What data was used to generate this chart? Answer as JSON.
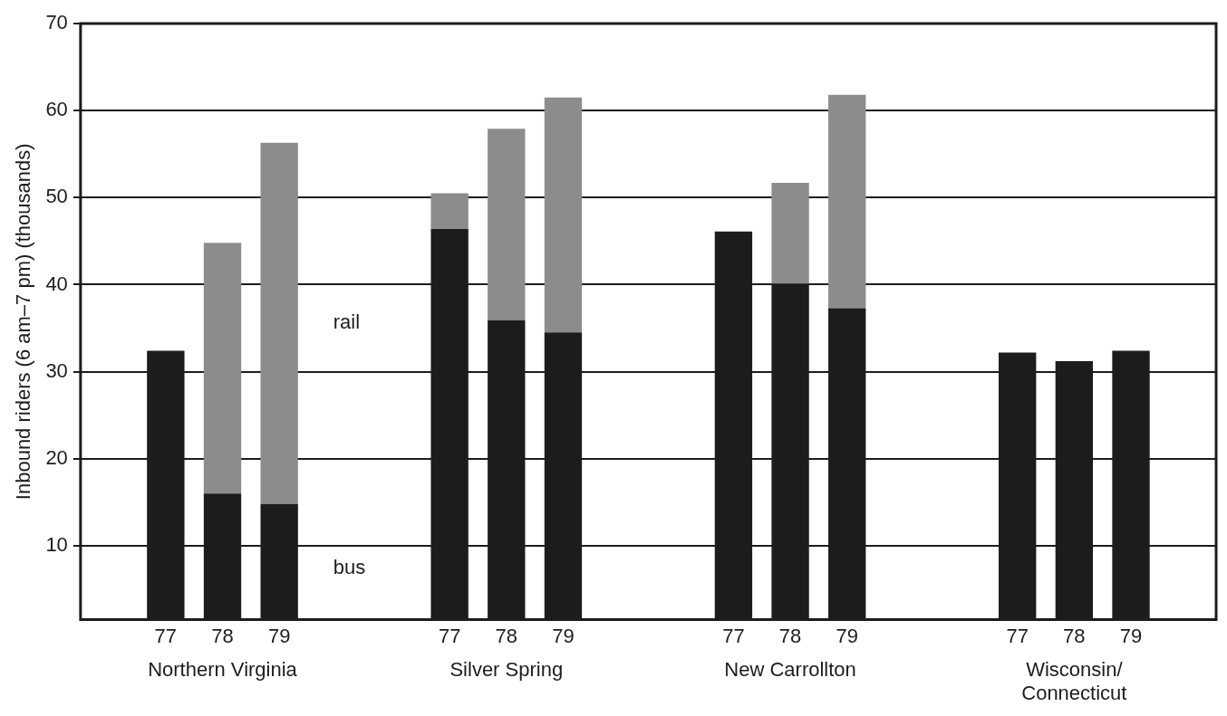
{
  "chart_data": {
    "type": "bar",
    "stacked": true,
    "ylabel": "Inbound riders (6 am–7 pm) (thousands)",
    "categories": [
      null,
      "77",
      "78",
      "79",
      null,
      null,
      "77",
      "78",
      "79",
      null,
      null,
      "77",
      "78",
      "79",
      null,
      null,
      "77",
      "78",
      "79",
      null
    ],
    "series": [
      {
        "name": "bus",
        "color": "#1c1c1c",
        "values": [
          null,
          32.4,
          16.0,
          14.8,
          null,
          null,
          46.4,
          35.9,
          34.5,
          null,
          null,
          46.1,
          40.1,
          37.3,
          null,
          null,
          32.2,
          31.2,
          32.4,
          null
        ]
      },
      {
        "name": "rail",
        "color": "#8c8c8c",
        "values": [
          null,
          null,
          28.8,
          41.5,
          null,
          null,
          4.1,
          22.0,
          27.0,
          null,
          null,
          null,
          11.6,
          24.5,
          null,
          null,
          null,
          null,
          null,
          null
        ]
      }
    ],
    "ylim": [
      1.5,
      70
    ],
    "yticks": [
      10,
      20,
      30,
      40,
      50,
      60,
      70
    ],
    "grid": "y",
    "legend": false,
    "annotations": [
      "Northern Virginia",
      "Silver Spring",
      "New Carrollton",
      "Wisconsin/Connecticut"
    ]
  }
}
